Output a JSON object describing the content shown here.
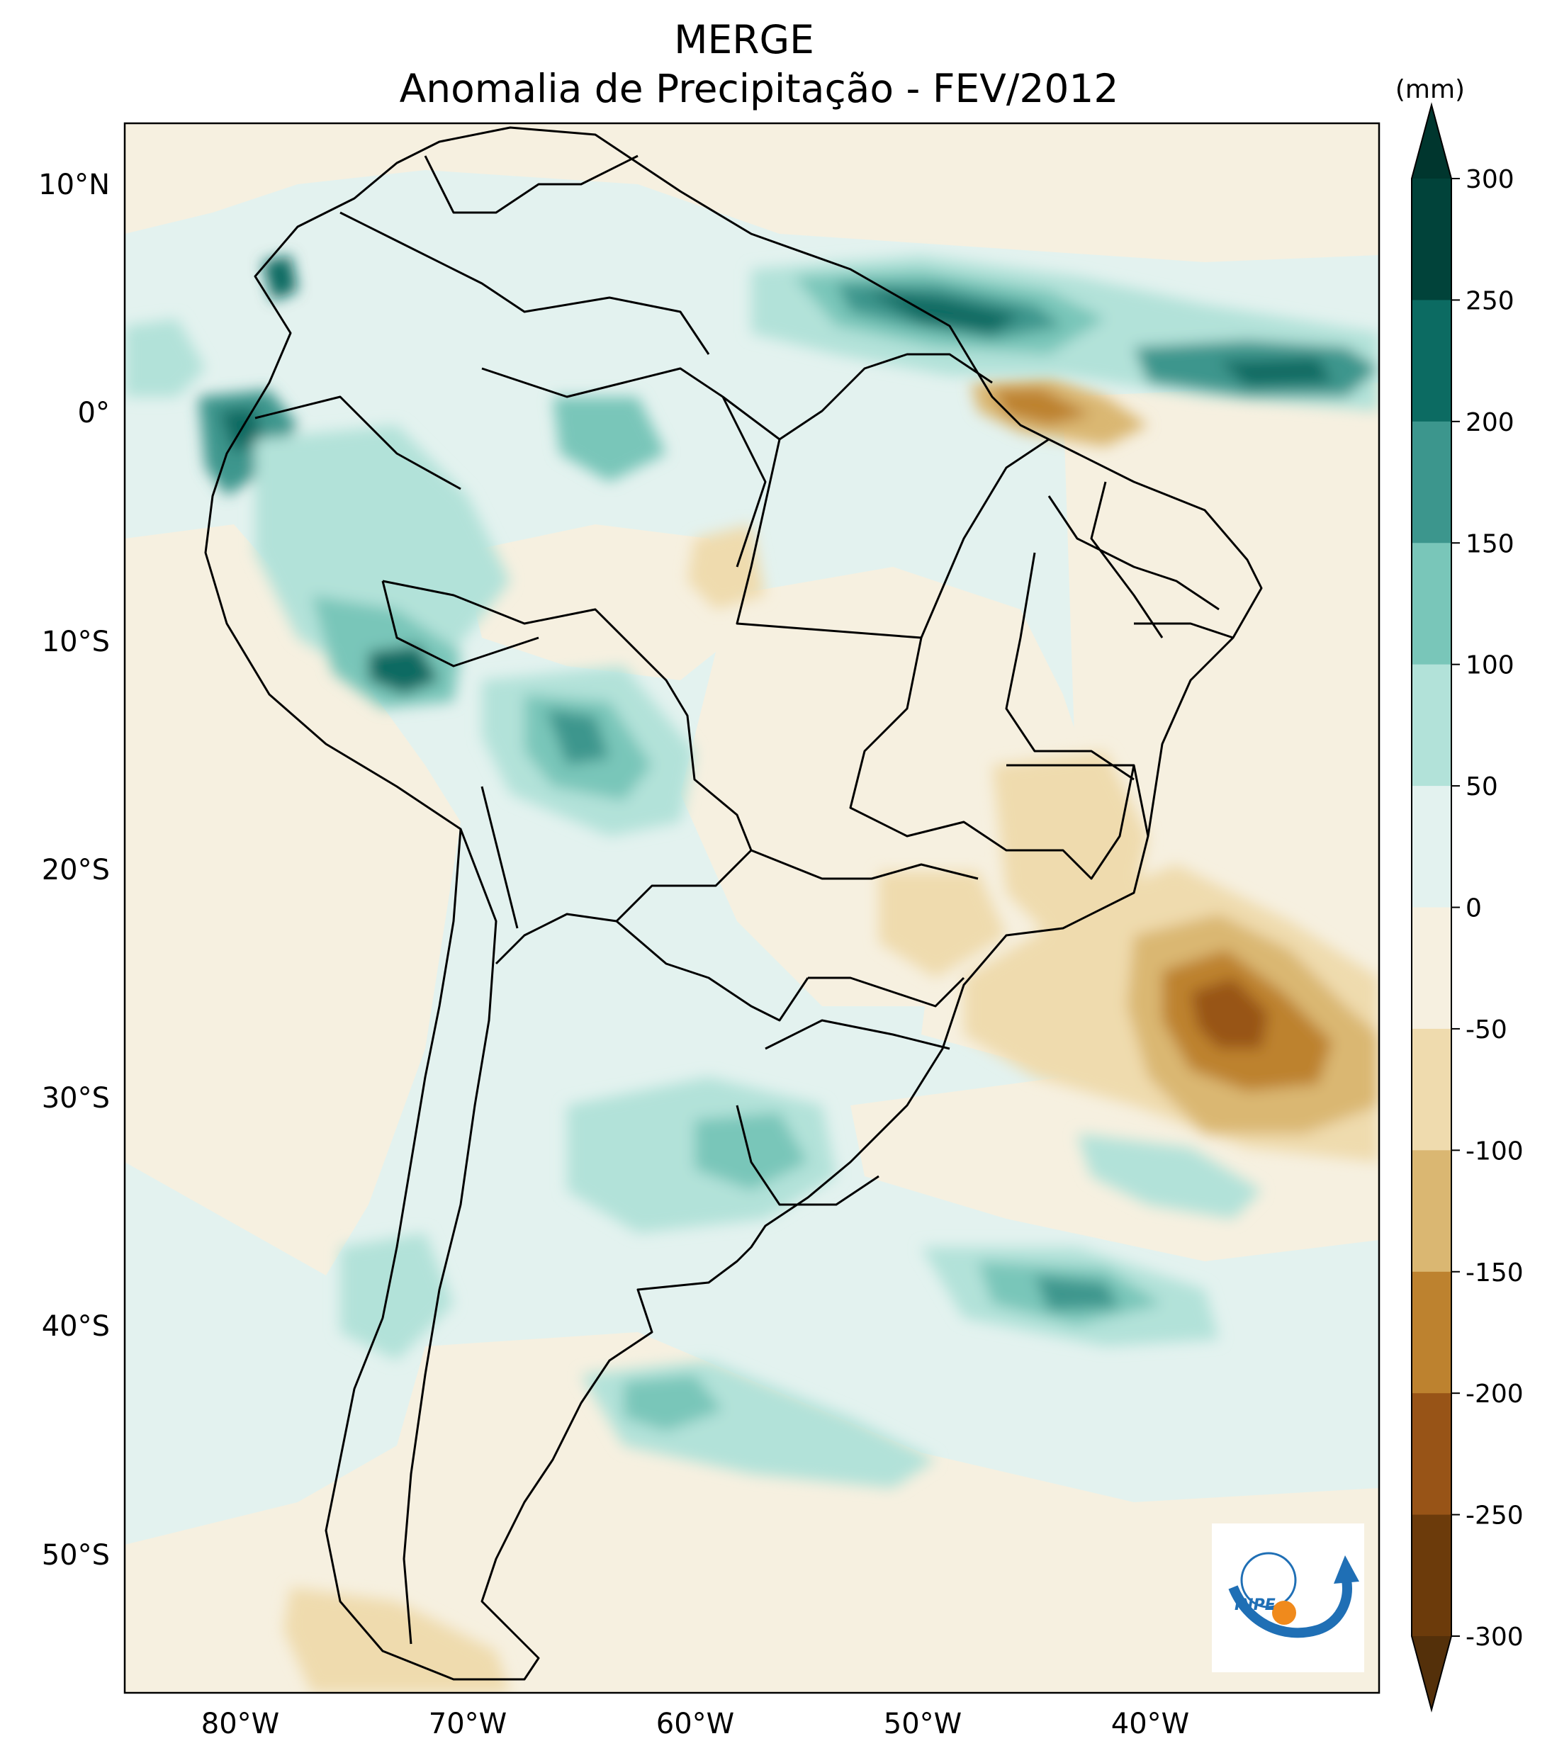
{
  "title": {
    "line1": "MERGE",
    "line2": "Anomalia de Precipitação - FEV/2012"
  },
  "axes": {
    "lon_ticks": [
      "80°W",
      "70°W",
      "60°W",
      "50°W",
      "40°W"
    ],
    "lat_ticks": [
      "10°N",
      "0°",
      "10°S",
      "20°S",
      "30°S",
      "40°S",
      "50°S"
    ]
  },
  "colorbar": {
    "unit": "(mm)",
    "levels": [
      "300",
      "250",
      "200",
      "150",
      "100",
      "50",
      "0",
      "-50",
      "-100",
      "-150",
      "-200",
      "-250",
      "-300"
    ],
    "colors_top_to_bottom": [
      "#01433a",
      "#0c6b62",
      "#3c968d",
      "#79c6b9",
      "#b2e2d9",
      "#e3f2ef",
      "#f6f0e0",
      "#efdbae",
      "#dab772",
      "#bd822f",
      "#985417",
      "#6c3b0b"
    ],
    "extend_max_color": "#00362e",
    "extend_min_color": "#54300a"
  },
  "logo": {
    "text": "INPE"
  },
  "colors": {
    "neutral_pos": "#e3f2ef",
    "neutral_neg": "#f6f0e0",
    "teal_light": "#b2e2d9",
    "teal_mid": "#79c6b9",
    "teal_dark": "#3c968d",
    "teal_darker": "#0c6b62",
    "teal_darkest": "#01433a",
    "brown_light": "#efdbae",
    "brown_mid": "#dab772",
    "brown_dark": "#bd822f",
    "brown_darker": "#985417",
    "logo_blue": "#1f6fb5",
    "logo_orange": "#f08a1c"
  }
}
